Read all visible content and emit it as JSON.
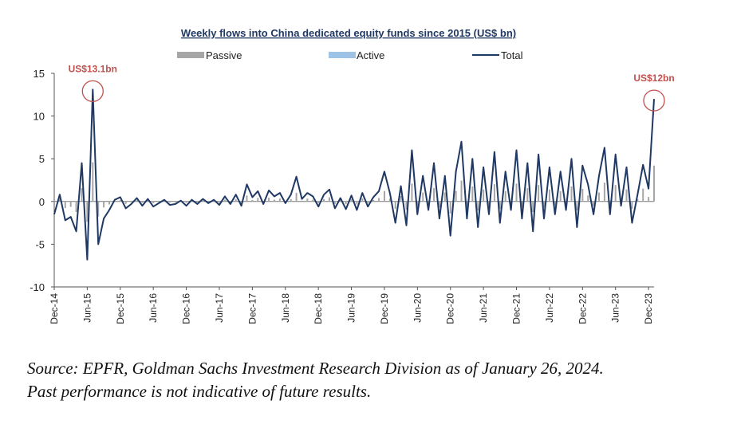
{
  "chart_data": {
    "type": "bar+line",
    "title": "Weekly flows into China dedicated equity funds since 2015 (US$ bn)",
    "legend": [
      {
        "name": "Passive",
        "kind": "bar",
        "color": "#a6a6a6"
      },
      {
        "name": "Active",
        "kind": "bar",
        "color": "#9dc3e6"
      },
      {
        "name": "Total",
        "kind": "line",
        "color": "#1f3864"
      }
    ],
    "legend_position": "top",
    "ylim": [
      -10,
      15
    ],
    "yticks": [
      -10,
      -5,
      0,
      5,
      10,
      15
    ],
    "xlim": [
      "2014-12",
      "2024-01"
    ],
    "xticks": [
      "Dec-14",
      "Jun-15",
      "Dec-15",
      "Jun-16",
      "Dec-16",
      "Jun-17",
      "Dec-17",
      "Jun-18",
      "Dec-18",
      "Jun-19",
      "Dec-19",
      "Jun-20",
      "Dec-20",
      "Jun-21",
      "Dec-21",
      "Jun-22",
      "Dec-22",
      "Jun-23",
      "Dec-23"
    ],
    "grid": false,
    "annotations": [
      {
        "text": "US$13.1bn",
        "x": "2015-07",
        "y": 13.1,
        "color": "#c0504d"
      },
      {
        "text": "US$12bn",
        "x": "2024-01",
        "y": 12,
        "color": "#c0504d"
      }
    ],
    "total_series": [
      [
        "2014-12",
        -1.5
      ],
      [
        "2015-01",
        0.8
      ],
      [
        "2015-02",
        -2.2
      ],
      [
        "2015-03",
        -1.8
      ],
      [
        "2015-04",
        -3.5
      ],
      [
        "2015-05",
        4.5
      ],
      [
        "2015-06",
        -6.8
      ],
      [
        "2015-07",
        13.1
      ],
      [
        "2015-08",
        -5.0
      ],
      [
        "2015-09",
        -2.0
      ],
      [
        "2015-10",
        -1.0
      ],
      [
        "2015-11",
        0.2
      ],
      [
        "2015-12",
        0.5
      ],
      [
        "2016-01",
        -0.8
      ],
      [
        "2016-02",
        -0.3
      ],
      [
        "2016-03",
        0.4
      ],
      [
        "2016-04",
        -0.5
      ],
      [
        "2016-05",
        0.3
      ],
      [
        "2016-06",
        -0.6
      ],
      [
        "2016-07",
        -0.2
      ],
      [
        "2016-08",
        0.2
      ],
      [
        "2016-09",
        -0.4
      ],
      [
        "2016-10",
        -0.3
      ],
      [
        "2016-11",
        0.1
      ],
      [
        "2016-12",
        -0.5
      ],
      [
        "2017-01",
        0.2
      ],
      [
        "2017-02",
        -0.3
      ],
      [
        "2017-03",
        0.3
      ],
      [
        "2017-04",
        -0.2
      ],
      [
        "2017-05",
        0.2
      ],
      [
        "2017-06",
        -0.4
      ],
      [
        "2017-07",
        0.6
      ],
      [
        "2017-08",
        -0.3
      ],
      [
        "2017-09",
        0.8
      ],
      [
        "2017-10",
        -0.5
      ],
      [
        "2017-11",
        2.0
      ],
      [
        "2017-12",
        0.5
      ],
      [
        "2018-01",
        1.2
      ],
      [
        "2018-02",
        -0.3
      ],
      [
        "2018-03",
        1.3
      ],
      [
        "2018-04",
        0.6
      ],
      [
        "2018-05",
        1.0
      ],
      [
        "2018-06",
        -0.2
      ],
      [
        "2018-07",
        0.8
      ],
      [
        "2018-08",
        2.9
      ],
      [
        "2018-09",
        0.3
      ],
      [
        "2018-10",
        1.0
      ],
      [
        "2018-11",
        0.6
      ],
      [
        "2018-12",
        -0.6
      ],
      [
        "2019-01",
        0.8
      ],
      [
        "2019-02",
        1.4
      ],
      [
        "2019-03",
        -0.8
      ],
      [
        "2019-04",
        0.4
      ],
      [
        "2019-05",
        -0.9
      ],
      [
        "2019-06",
        0.7
      ],
      [
        "2019-07",
        -1.0
      ],
      [
        "2019-08",
        1.0
      ],
      [
        "2019-09",
        -0.6
      ],
      [
        "2019-10",
        0.5
      ],
      [
        "2019-11",
        1.2
      ],
      [
        "2019-12",
        3.5
      ],
      [
        "2020-01",
        1.0
      ],
      [
        "2020-02",
        -2.5
      ],
      [
        "2020-03",
        1.8
      ],
      [
        "2020-04",
        -2.8
      ],
      [
        "2020-05",
        6.0
      ],
      [
        "2020-06",
        -1.5
      ],
      [
        "2020-07",
        3.0
      ],
      [
        "2020-08",
        -1.0
      ],
      [
        "2020-09",
        4.5
      ],
      [
        "2020-10",
        -2.0
      ],
      [
        "2020-11",
        3.0
      ],
      [
        "2020-12",
        -4.0
      ],
      [
        "2021-01",
        3.5
      ],
      [
        "2021-02",
        7.0
      ],
      [
        "2021-03",
        -2.0
      ],
      [
        "2021-04",
        5.0
      ],
      [
        "2021-05",
        -3.0
      ],
      [
        "2021-06",
        4.0
      ],
      [
        "2021-07",
        -1.5
      ],
      [
        "2021-08",
        5.8
      ],
      [
        "2021-09",
        -2.5
      ],
      [
        "2021-10",
        3.5
      ],
      [
        "2021-11",
        -1.0
      ],
      [
        "2021-12",
        6.0
      ],
      [
        "2022-01",
        -2.0
      ],
      [
        "2022-02",
        4.5
      ],
      [
        "2022-03",
        -3.5
      ],
      [
        "2022-04",
        5.5
      ],
      [
        "2022-05",
        -2.0
      ],
      [
        "2022-06",
        4.0
      ],
      [
        "2022-07",
        -1.5
      ],
      [
        "2022-08",
        3.5
      ],
      [
        "2022-09",
        -1.0
      ],
      [
        "2022-10",
        5.0
      ],
      [
        "2022-11",
        -3.0
      ],
      [
        "2022-12",
        4.2
      ],
      [
        "2023-01",
        2.0
      ],
      [
        "2023-02",
        -1.5
      ],
      [
        "2023-03",
        3.0
      ],
      [
        "2023-04",
        6.3
      ],
      [
        "2023-05",
        -1.5
      ],
      [
        "2023-06",
        5.5
      ],
      [
        "2023-07",
        -0.5
      ],
      [
        "2023-08",
        4.0
      ],
      [
        "2023-09",
        -2.5
      ],
      [
        "2023-10",
        0.8
      ],
      [
        "2023-11",
        4.3
      ],
      [
        "2023-12",
        1.5
      ],
      [
        "2024-01",
        12.0
      ]
    ]
  },
  "source": {
    "line1": "Source: EPFR, Goldman Sachs Investment Research Division as of January 26, 2024.",
    "line2": "Past performance is not indicative of future results."
  }
}
